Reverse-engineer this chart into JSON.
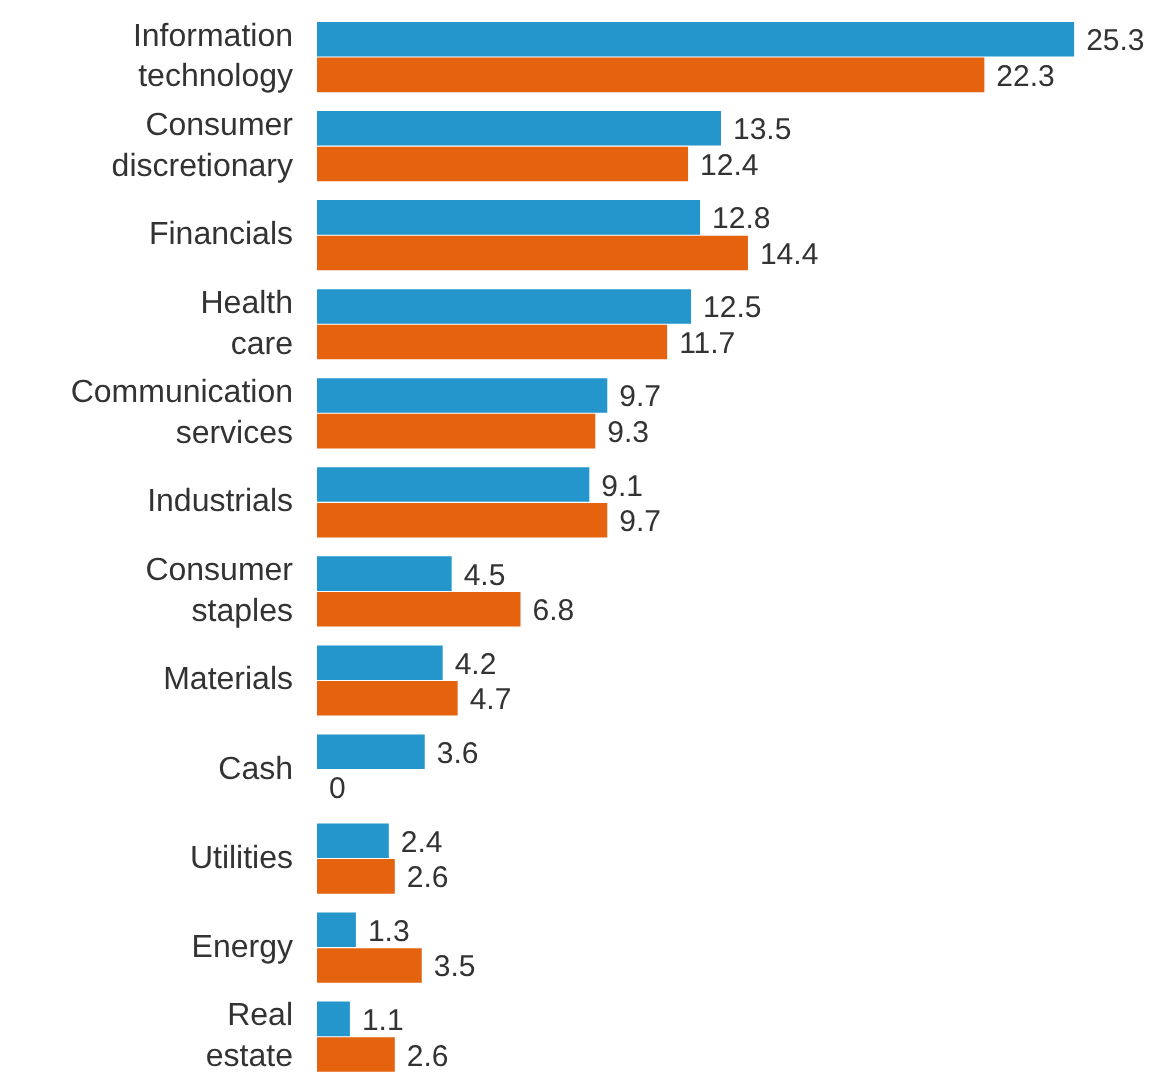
{
  "chart_data": {
    "type": "bar",
    "orientation": "horizontal",
    "data_labels": true,
    "grid": false,
    "categories": [
      "Information technology",
      "Consumer discretionary",
      "Financials",
      "Health care",
      "Communication services",
      "Industrials",
      "Consumer staples",
      "Materials",
      "Cash",
      "Utilities",
      "Energy",
      "Real estate"
    ],
    "series": [
      {
        "color": "#2596cc",
        "values": [
          25.3,
          13.5,
          12.8,
          12.5,
          9.7,
          9.1,
          4.5,
          4.2,
          3.6,
          2.4,
          1.3,
          1.1
        ]
      },
      {
        "color": "#e5620f",
        "values": [
          22.3,
          12.4,
          14.4,
          11.7,
          9.3,
          9.7,
          6.8,
          4.7,
          0,
          2.6,
          3.5,
          2.6
        ]
      }
    ]
  }
}
